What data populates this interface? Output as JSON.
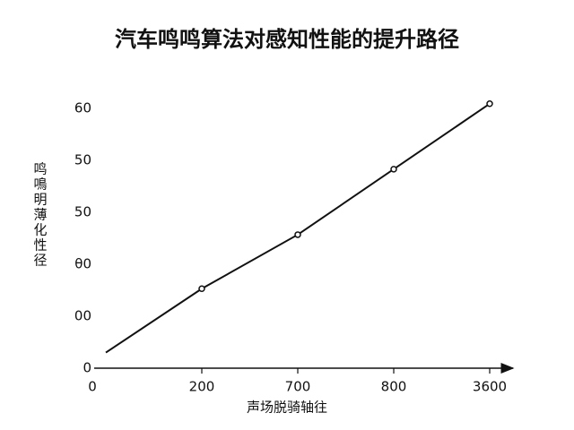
{
  "chart_data": {
    "type": "line",
    "title": "汽车鸣鸣算法对感知性能的提升路径",
    "x_label": "声场脱骑轴往",
    "y_label": "鸣鳴明薄化性径",
    "categories": [
      "0",
      "200",
      "700",
      "800",
      "3600"
    ],
    "series": [
      {
        "name": "line",
        "color": "#111111",
        "values": [
          3,
          15.3,
          25.7,
          38.3,
          50.9
        ]
      }
    ],
    "ylim": [
      0,
      52
    ],
    "yticks": [
      0,
      {
        "value": 10,
        "label": "00"
      },
      {
        "value": 20,
        "label": "θ0"
      },
      {
        "value": 30,
        "label": "50"
      },
      {
        "value": 40,
        "label": "50"
      },
      {
        "value": 50,
        "label": "60"
      }
    ],
    "grid": false
  }
}
